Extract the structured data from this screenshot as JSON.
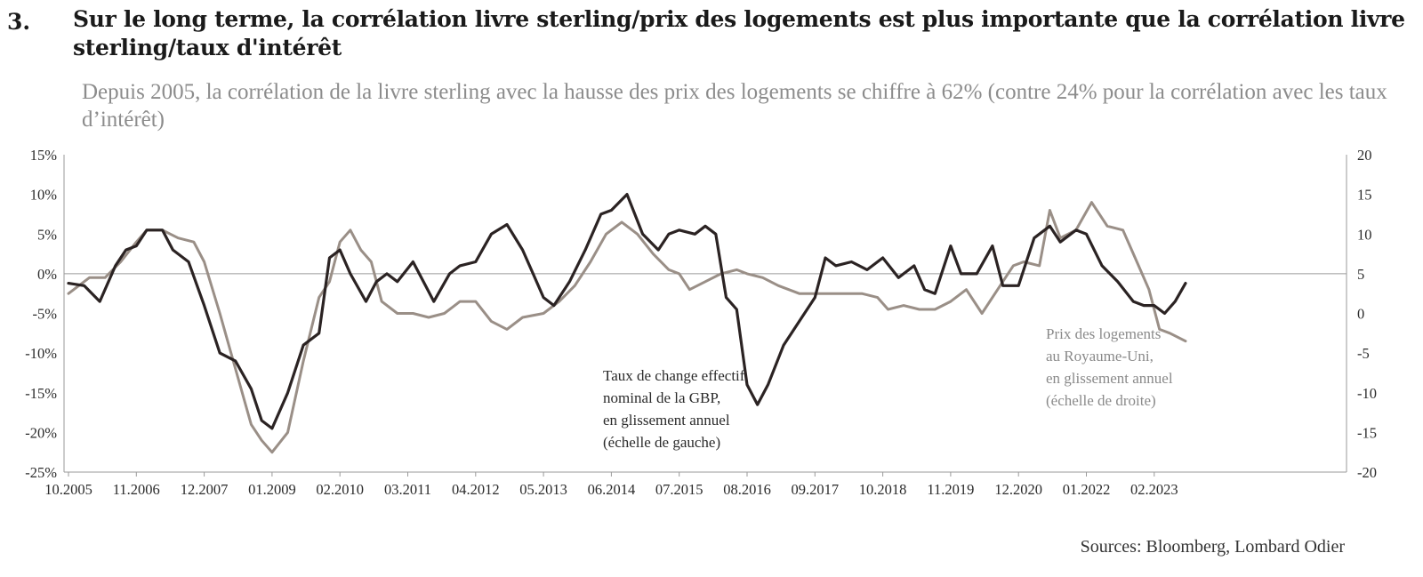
{
  "header": {
    "number": "3.",
    "title": "Sur le long terme, la corrélation livre sterling/prix des logements est plus importante que la corrélation livre sterling/taux d'intérêt",
    "subtitle": "Depuis 2005, la corrélation de la livre sterling avec la hausse des prix des logements se chiffre à 62% (contre 24% pour la corrélation avec les taux d’intérêt)"
  },
  "source": "Sources: Bloomberg, Lombard Odier",
  "colors": {
    "gbp": "#2b2323",
    "house": "#9a8f87",
    "axis": "#9a9a9a"
  },
  "chart_data": {
    "type": "line",
    "x_tick_labels": [
      "10.2005",
      "11.2006",
      "12.2007",
      "01.2009",
      "02.2010",
      "03.2011",
      "04.2012",
      "05.2013",
      "06.2014",
      "07.2015",
      "08.2016",
      "09.2017",
      "10.2018",
      "11.2019",
      "12.2020",
      "01.2022",
      "02.2023"
    ],
    "y_left": {
      "range": [
        -25,
        15
      ],
      "ticks": [
        "15%",
        "10%",
        "5%",
        "0%",
        "-5%",
        "-10%",
        "-15%",
        "-20%",
        "-25%"
      ]
    },
    "y_right": {
      "range": [
        -20,
        20
      ],
      "ticks": [
        "20",
        "15",
        "10",
        "5",
        "0",
        "-5",
        "-10",
        "-15",
        "-20"
      ]
    },
    "grid": "horizontal zero line only",
    "series": [
      {
        "key": "gbp",
        "axis": "left",
        "name_lines": [
          "Taux de change effectif",
          "nominal de la GBP,",
          "en glissement annuel",
          "(échelle de gauche)"
        ],
        "points": [
          [
            "10.2005",
            -1.2
          ],
          [
            "01.2006",
            -1.5
          ],
          [
            "04.2006",
            -3.5
          ],
          [
            "07.2006",
            1
          ],
          [
            "09.2006",
            3
          ],
          [
            "11.2006",
            3.5
          ],
          [
            "01.2007",
            5.5
          ],
          [
            "04.2007",
            5.5
          ],
          [
            "06.2007",
            3
          ],
          [
            "09.2007",
            1.5
          ],
          [
            "12.2007",
            -4
          ],
          [
            "03.2008",
            -10
          ],
          [
            "06.2008",
            -11
          ],
          [
            "09.2008",
            -14.5
          ],
          [
            "11.2008",
            -18.5
          ],
          [
            "01.2009",
            -19.5
          ],
          [
            "04.2009",
            -15
          ],
          [
            "07.2009",
            -9
          ],
          [
            "10.2009",
            -7.5
          ],
          [
            "12.2009",
            2
          ],
          [
            "02.2010",
            3
          ],
          [
            "04.2010",
            0
          ],
          [
            "07.2010",
            -3.5
          ],
          [
            "09.2010",
            -1
          ],
          [
            "11.2010",
            0
          ],
          [
            "01.2011",
            -1
          ],
          [
            "04.2011",
            1.5
          ],
          [
            "06.2011",
            -1
          ],
          [
            "08.2011",
            -3.5
          ],
          [
            "11.2011",
            0
          ],
          [
            "01.2012",
            1
          ],
          [
            "04.2012",
            1.5
          ],
          [
            "07.2012",
            5
          ],
          [
            "10.2012",
            6.2
          ],
          [
            "01.2013",
            3
          ],
          [
            "03.2013",
            0
          ],
          [
            "05.2013",
            -3
          ],
          [
            "07.2013",
            -4
          ],
          [
            "10.2013",
            -1
          ],
          [
            "01.2014",
            3
          ],
          [
            "04.2014",
            7.5
          ],
          [
            "06.2014",
            8
          ],
          [
            "09.2014",
            10
          ],
          [
            "12.2014",
            5
          ],
          [
            "03.2015",
            3
          ],
          [
            "05.2015",
            5
          ],
          [
            "07.2015",
            5.5
          ],
          [
            "10.2015",
            5
          ],
          [
            "12.2015",
            6
          ],
          [
            "02.2016",
            5
          ],
          [
            "04.2016",
            -3
          ],
          [
            "06.2016",
            -4.5
          ],
          [
            "08.2016",
            -14
          ],
          [
            "10.2016",
            -16.5
          ],
          [
            "12.2016",
            -14
          ],
          [
            "03.2017",
            -9
          ],
          [
            "06.2017",
            -6
          ],
          [
            "09.2017",
            -3
          ],
          [
            "11.2017",
            2
          ],
          [
            "01.2018",
            1
          ],
          [
            "04.2018",
            1.5
          ],
          [
            "07.2018",
            0.5
          ],
          [
            "10.2018",
            2
          ],
          [
            "01.2019",
            -0.5
          ],
          [
            "04.2019",
            1
          ],
          [
            "06.2019",
            -2
          ],
          [
            "08.2019",
            -2.5
          ],
          [
            "11.2019",
            3.5
          ],
          [
            "01.2020",
            0
          ],
          [
            "04.2020",
            0
          ],
          [
            "07.2020",
            3.5
          ],
          [
            "09.2020",
            -1.5
          ],
          [
            "12.2020",
            -1.5
          ],
          [
            "03.2021",
            4.5
          ],
          [
            "06.2021",
            6
          ],
          [
            "08.2021",
            4
          ],
          [
            "11.2021",
            5.5
          ],
          [
            "01.2022",
            5
          ],
          [
            "04.2022",
            1
          ],
          [
            "07.2022",
            -1
          ],
          [
            "10.2022",
            -3.5
          ],
          [
            "12.2022",
            -4
          ],
          [
            "02.2023",
            -4
          ],
          [
            "04.2023",
            -5
          ],
          [
            "06.2023",
            -3.5
          ],
          [
            "08.2023",
            -1.2
          ]
        ]
      },
      {
        "key": "house",
        "axis": "right",
        "name_lines": [
          "Prix des logements",
          "au Royaume-Uni,",
          "en glissement annuel",
          "(échelle de droite)"
        ],
        "points": [
          [
            "10.2005",
            2.5
          ],
          [
            "02.2006",
            4.5
          ],
          [
            "05.2006",
            4.5
          ],
          [
            "08.2006",
            6.5
          ],
          [
            "11.2006",
            9
          ],
          [
            "01.2007",
            10.5
          ],
          [
            "04.2007",
            10.5
          ],
          [
            "07.2007",
            9.5
          ],
          [
            "10.2007",
            9
          ],
          [
            "12.2007",
            6.5
          ],
          [
            "03.2008",
            0
          ],
          [
            "06.2008",
            -7
          ],
          [
            "09.2008",
            -14
          ],
          [
            "11.2008",
            -16
          ],
          [
            "01.2009",
            -17.5
          ],
          [
            "04.2009",
            -15
          ],
          [
            "07.2009",
            -6
          ],
          [
            "10.2009",
            2
          ],
          [
            "12.2009",
            4
          ],
          [
            "02.2010",
            9
          ],
          [
            "04.2010",
            10.5
          ],
          [
            "06.2010",
            8
          ],
          [
            "08.2010",
            6.5
          ],
          [
            "10.2010",
            1.5
          ],
          [
            "01.2011",
            0
          ],
          [
            "04.2011",
            0
          ],
          [
            "07.2011",
            -0.5
          ],
          [
            "10.2011",
            0
          ],
          [
            "01.2012",
            1.5
          ],
          [
            "04.2012",
            1.5
          ],
          [
            "07.2012",
            -1
          ],
          [
            "10.2012",
            -2
          ],
          [
            "01.2013",
            -0.5
          ],
          [
            "05.2013",
            0
          ],
          [
            "08.2013",
            1.5
          ],
          [
            "11.2013",
            3.5
          ],
          [
            "02.2014",
            6.5
          ],
          [
            "05.2014",
            10
          ],
          [
            "08.2014",
            11.5
          ],
          [
            "11.2014",
            10
          ],
          [
            "02.2015",
            7.5
          ],
          [
            "05.2015",
            5.5
          ],
          [
            "07.2015",
            5
          ],
          [
            "09.2015",
            3
          ],
          [
            "12.2015",
            4
          ],
          [
            "03.2016",
            5
          ],
          [
            "06.2016",
            5.5
          ],
          [
            "08.2016",
            5
          ],
          [
            "11.2016",
            4.5
          ],
          [
            "02.2017",
            3.5
          ],
          [
            "06.2017",
            2.5
          ],
          [
            "09.2017",
            2.5
          ],
          [
            "12.2017",
            2.5
          ],
          [
            "03.2018",
            2.5
          ],
          [
            "06.2018",
            2.5
          ],
          [
            "09.2018",
            2
          ],
          [
            "11.2018",
            0.5
          ],
          [
            "02.2019",
            1
          ],
          [
            "05.2019",
            0.5
          ],
          [
            "08.2019",
            0.5
          ],
          [
            "11.2019",
            1.5
          ],
          [
            "02.2020",
            3
          ],
          [
            "05.2020",
            0
          ],
          [
            "08.2020",
            3
          ],
          [
            "11.2020",
            6
          ],
          [
            "01.2021",
            6.5
          ],
          [
            "04.2021",
            6
          ],
          [
            "06.2021",
            13
          ],
          [
            "08.2021",
            9.5
          ],
          [
            "11.2021",
            10.5
          ],
          [
            "02.2022",
            14
          ],
          [
            "05.2022",
            11
          ],
          [
            "08.2022",
            10.5
          ],
          [
            "11.2022",
            6
          ],
          [
            "01.2023",
            3
          ],
          [
            "03.2023",
            -2
          ],
          [
            "05.2023",
            -2.5
          ],
          [
            "08.2023",
            -3.5
          ]
        ]
      }
    ]
  }
}
